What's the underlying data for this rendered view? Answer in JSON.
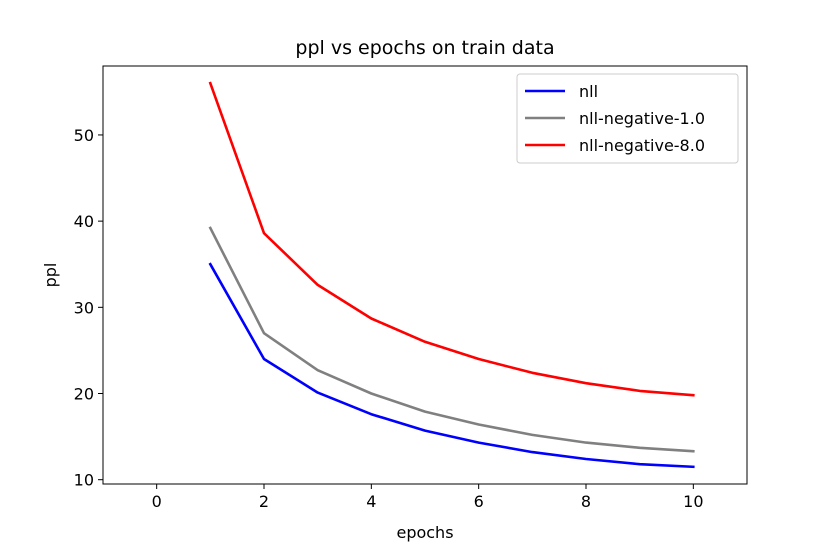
{
  "chart_data": {
    "type": "line",
    "title": "ppl vs epochs on train data",
    "xlabel": "epochs",
    "ylabel": "ppl",
    "xlim": [
      -1,
      11
    ],
    "ylim": [
      9.5,
      58.0
    ],
    "xticks": [
      0,
      2,
      4,
      6,
      8,
      10
    ],
    "yticks": [
      10,
      20,
      30,
      40,
      50
    ],
    "grid": false,
    "legend_position": "top-right",
    "x": [
      1,
      2,
      3,
      4,
      5,
      6,
      7,
      8,
      9,
      10
    ],
    "series": [
      {
        "name": "nll",
        "color": "#0000ff",
        "values": [
          35.0,
          24.0,
          20.1,
          17.6,
          15.7,
          14.3,
          13.2,
          12.4,
          11.8,
          11.5
        ]
      },
      {
        "name": "nll-negative-1.0",
        "color": "#808080",
        "values": [
          39.2,
          27.0,
          22.7,
          20.0,
          17.9,
          16.4,
          15.2,
          14.3,
          13.7,
          13.3
        ]
      },
      {
        "name": "nll-negative-8.0",
        "color": "#ff0000",
        "values": [
          56.0,
          38.6,
          32.6,
          28.7,
          26.0,
          24.0,
          22.4,
          21.2,
          20.3,
          19.8
        ]
      }
    ]
  }
}
